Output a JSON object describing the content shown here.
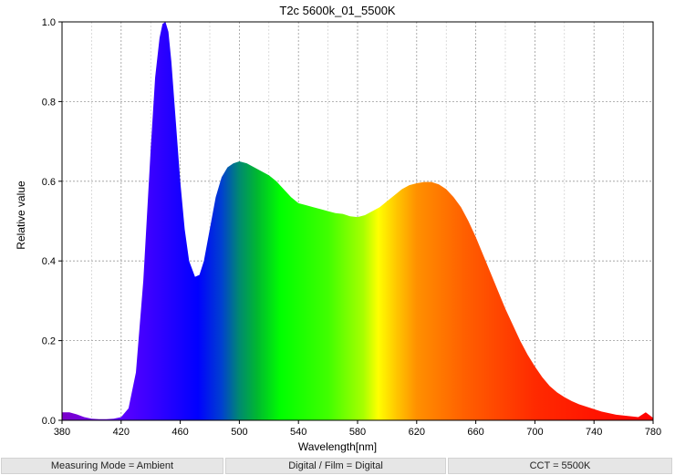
{
  "chart_data": {
    "type": "area",
    "title": "T2c 5600k_01_5500K",
    "xlabel": "Wavelength[nm]",
    "ylabel": "Relative value",
    "xlim": [
      380,
      780
    ],
    "ylim": [
      0,
      1
    ],
    "xticks": [
      "380",
      "420",
      "460",
      "500",
      "540",
      "580",
      "620",
      "660",
      "700",
      "740",
      "780"
    ],
    "yticks": [
      "0.0",
      "0.2",
      "0.4",
      "0.6",
      "0.8",
      "1.0"
    ],
    "grid": true,
    "series": [
      {
        "x": [
          380,
          385,
          390,
          395,
          400,
          405,
          410,
          415,
          420,
          425,
          430,
          435,
          440,
          443,
          446,
          448,
          450,
          452,
          454,
          457,
          460,
          463,
          466,
          470,
          473,
          476,
          480,
          484,
          488,
          492,
          496,
          500,
          505,
          510,
          515,
          520,
          525,
          530,
          535,
          540,
          545,
          550,
          555,
          560,
          565,
          570,
          575,
          580,
          585,
          590,
          595,
          600,
          605,
          610,
          615,
          620,
          625,
          630,
          635,
          640,
          645,
          650,
          655,
          660,
          665,
          670,
          675,
          680,
          685,
          690,
          695,
          700,
          705,
          710,
          715,
          720,
          725,
          730,
          735,
          740,
          745,
          750,
          755,
          760,
          765,
          770,
          775,
          780
        ],
        "y": [
          0.02,
          0.02,
          0.015,
          0.008,
          0.004,
          0.003,
          0.003,
          0.004,
          0.008,
          0.03,
          0.12,
          0.35,
          0.68,
          0.86,
          0.96,
          0.995,
          1.0,
          0.975,
          0.9,
          0.75,
          0.6,
          0.48,
          0.4,
          0.36,
          0.365,
          0.4,
          0.48,
          0.56,
          0.61,
          0.635,
          0.645,
          0.65,
          0.645,
          0.635,
          0.625,
          0.615,
          0.6,
          0.58,
          0.56,
          0.545,
          0.54,
          0.535,
          0.53,
          0.525,
          0.52,
          0.518,
          0.512,
          0.51,
          0.515,
          0.525,
          0.535,
          0.55,
          0.565,
          0.58,
          0.59,
          0.595,
          0.598,
          0.598,
          0.592,
          0.58,
          0.56,
          0.535,
          0.5,
          0.46,
          0.415,
          0.37,
          0.325,
          0.28,
          0.24,
          0.2,
          0.165,
          0.135,
          0.108,
          0.086,
          0.07,
          0.058,
          0.048,
          0.04,
          0.034,
          0.028,
          0.022,
          0.018,
          0.014,
          0.012,
          0.01,
          0.008,
          0.02,
          0.006
        ]
      }
    ]
  },
  "status": {
    "measuring_mode": "Measuring Mode = Ambient",
    "digital_film": "Digital / Film = Digital",
    "cct": "CCT = 5500K"
  }
}
